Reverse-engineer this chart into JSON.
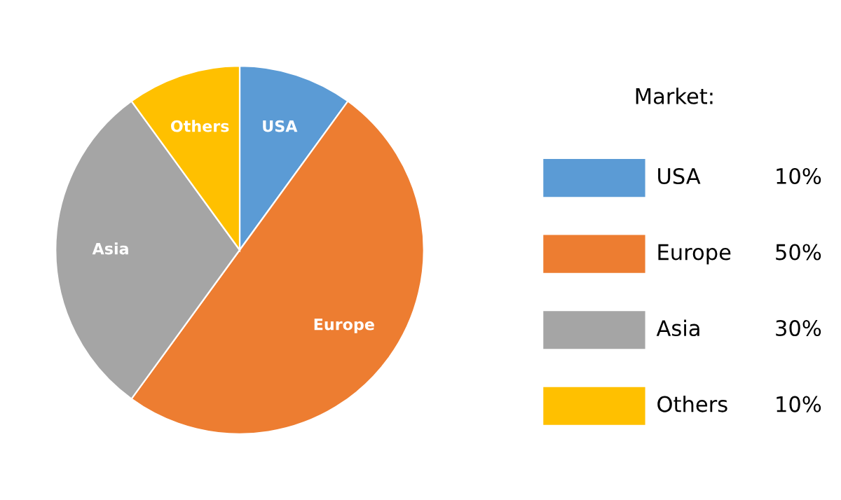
{
  "chart_data": {
    "type": "pie",
    "legend_title": "Market:",
    "legend": "right",
    "categories": [
      "USA",
      "Europe",
      "Asia",
      "Others"
    ],
    "values": [
      10,
      50,
      30,
      10
    ],
    "value_labels": [
      "10%",
      "50%",
      "30%",
      "10%"
    ],
    "colors": [
      "#5b9bd5",
      "#ed7d31",
      "#a5a5a5",
      "#ffc000"
    ]
  }
}
